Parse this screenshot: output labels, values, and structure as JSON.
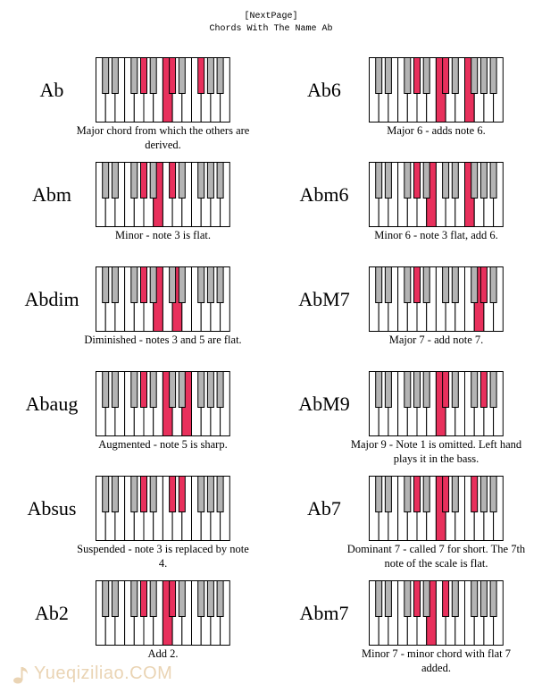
{
  "header": {
    "nav_link": "[NextPage]",
    "title": "Chords With The Name Ab"
  },
  "colors": {
    "highlight": "#e8305c",
    "black_key": "#b4b4b4",
    "outline": "#000000"
  },
  "keyboard": {
    "white_keys": 14,
    "black_key_pattern": "C#,D#,F#,G#,A#"
  },
  "chords": [
    {
      "id": "ab",
      "name": "Ab",
      "caption": "Major chord from which the others are derived.",
      "black": [
        3,
        5,
        7
      ],
      "white": [
        7
      ]
    },
    {
      "id": "ab6",
      "name": "Ab6",
      "caption": "Major 6 - adds note 6.",
      "black": [
        3,
        5
      ],
      "white": [
        7,
        10
      ]
    },
    {
      "id": "abm",
      "name": "Abm",
      "caption": "Minor - note 3 is flat.",
      "black": [
        3,
        5
      ],
      "white": [
        6
      ]
    },
    {
      "id": "abm6",
      "name": "Abm6",
      "caption": "Minor 6 - note 3 flat, add 6.",
      "black": [
        3
      ],
      "white": [
        6,
        10
      ]
    },
    {
      "id": "abdim",
      "name": "Abdim",
      "caption": "Diminished - notes 3 and 5 are flat.",
      "black": [
        3
      ],
      "white": [
        6,
        8
      ]
    },
    {
      "id": "abm7",
      "name": "AbM7",
      "caption": "Major 7 - add note 7.",
      "black": [
        3,
        8
      ],
      "white": [
        11
      ]
    },
    {
      "id": "abaug",
      "name": "Abaug",
      "caption": "Augmented - note 5 is sharp.",
      "black": [
        3
      ],
      "white": [
        7,
        9
      ]
    },
    {
      "id": "abm9",
      "name": "AbM9",
      "caption": "Major 9 - Note 1 is omitted. Left hand plays it in the bass.",
      "black": [
        5,
        8
      ],
      "white": [
        7
      ]
    },
    {
      "id": "absus",
      "name": "Absus",
      "caption": "Suspended - note 3 is replaced by note 4.",
      "black": [
        3,
        5,
        6
      ],
      "white": []
    },
    {
      "id": "ab7",
      "name": "Ab7",
      "caption": "Dominant 7 - called 7 for short. The 7th note of the scale is flat.",
      "black": [
        3,
        5,
        7
      ],
      "white": [
        7
      ]
    },
    {
      "id": "ab2",
      "name": "Ab2",
      "caption": "Add 2.",
      "black": [
        3,
        5
      ],
      "white": [
        7
      ]
    },
    {
      "id": "abm7b",
      "name": "Abm7",
      "caption": "Minor 7 - minor chord with flat 7 added.",
      "black": [
        3,
        5
      ],
      "white": [
        6
      ]
    }
  ],
  "watermark": {
    "text": "Yueqiziliao.COM"
  }
}
